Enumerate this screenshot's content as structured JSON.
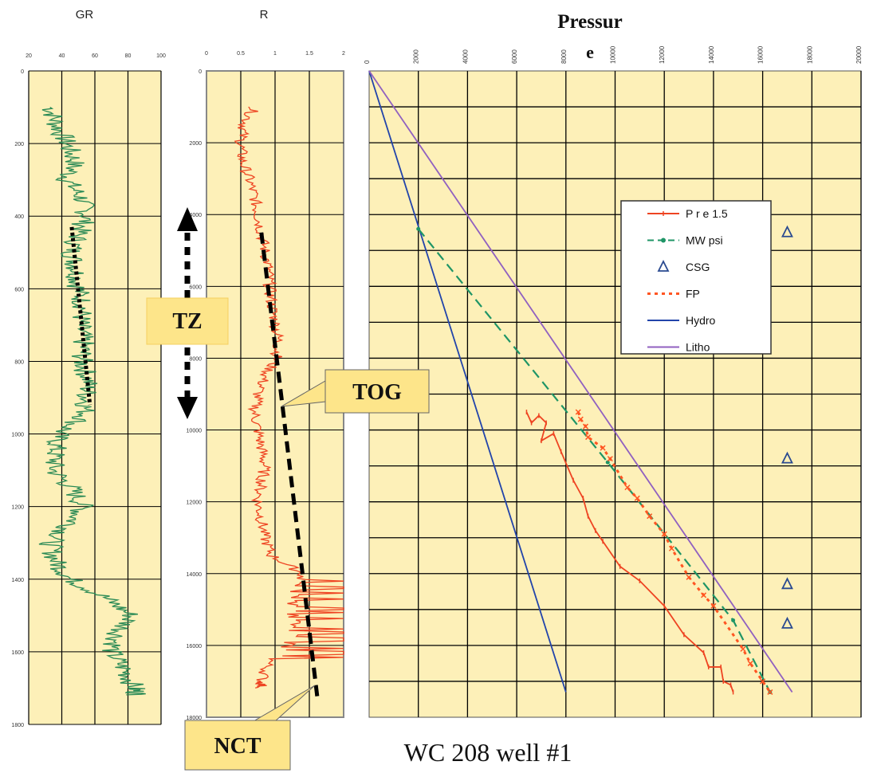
{
  "colors": {
    "panel_bg": "#fdf0b8",
    "grid": "#000000",
    "gr_curve": "#2a8a55",
    "r_curve": "#ee4422",
    "pre": "#ee4422",
    "mw": "#1f9566",
    "csg": "#2a4a90",
    "fp": "#ff5522",
    "hydro": "#2244aa",
    "litho": "#9060c0",
    "annotation_bg": "#fde58a",
    "trend": "#000000"
  },
  "caption": "WC 208 well #1",
  "annotations": {
    "tz": "TZ",
    "tog": "TOG",
    "nct": "NCT"
  },
  "chart_data": [
    {
      "type": "line",
      "title": "GR",
      "x_ticks": [
        "20",
        "40",
        "60",
        "80",
        "100"
      ],
      "y_ticks": [
        "0",
        "200",
        "400",
        "600",
        "800",
        "1000",
        "1200",
        "1400",
        "1600",
        "1800"
      ],
      "xlim": [
        20,
        100
      ],
      "ylim": [
        0,
        1800
      ],
      "y_inverted": true,
      "series": [
        {
          "depth": [
            100,
            150,
            200,
            250,
            300,
            350,
            400,
            450,
            500,
            550,
            600,
            650,
            700,
            750,
            800,
            850,
            900,
            950,
            1000,
            1050,
            1100,
            1150,
            1200,
            1250,
            1300,
            1350,
            1400,
            1450,
            1500,
            1550,
            1600,
            1650,
            1700,
            1720
          ],
          "values": [
            33,
            37,
            43,
            48,
            43,
            52,
            55,
            50,
            46,
            49,
            50,
            53,
            51,
            53,
            52,
            56,
            55,
            54,
            38,
            36,
            35,
            46,
            53,
            45,
            33,
            36,
            45,
            66,
            82,
            74,
            70,
            78,
            84,
            86
          ]
        }
      ],
      "trend": {
        "depth": [
          430,
          920
        ],
        "values": [
          46,
          57
        ]
      }
    },
    {
      "type": "line",
      "title": "R",
      "x_ticks": [
        "0",
        "0.5",
        "1",
        "1.5",
        "2"
      ],
      "y_ticks": [
        "0",
        "2000",
        "4000",
        "6000",
        "8000",
        "10000",
        "12000",
        "14000",
        "16000",
        "18000"
      ],
      "xlim": [
        0,
        2
      ],
      "ylim": [
        0,
        18000
      ],
      "y_inverted": true,
      "series": [
        {
          "depth": [
            1000,
            1500,
            2000,
            2500,
            3000,
            3500,
            4000,
            4500,
            5000,
            5500,
            6000,
            6500,
            7000,
            7500,
            8000,
            8500,
            9000,
            9500,
            10000,
            10500,
            11000,
            11500,
            12000,
            12500,
            13000,
            13500,
            14000,
            14500,
            15000,
            15500,
            16000,
            16500,
            17000,
            17200
          ],
          "values": [
            0.7,
            0.55,
            0.5,
            0.52,
            0.62,
            0.7,
            0.75,
            0.8,
            0.85,
            0.9,
            0.92,
            0.95,
            1.0,
            1.05,
            1.02,
            0.85,
            0.75,
            0.7,
            0.75,
            0.8,
            0.85,
            0.8,
            0.75,
            0.8,
            0.85,
            0.95,
            1.4,
            1.3,
            1.25,
            1.3,
            1.2,
            0.9,
            0.8,
            0.8
          ]
        }
      ],
      "trend": {
        "depth": [
          4500,
          9200,
          17500
        ],
        "values": [
          0.8,
          1.1,
          1.62
        ]
      }
    },
    {
      "type": "line",
      "title": "Pressure",
      "x_ticks": [
        "0",
        "2000",
        "4000",
        "6000",
        "8000",
        "10000",
        "12000",
        "14000",
        "16000",
        "18000",
        "20000"
      ],
      "xlim": [
        0,
        20000
      ],
      "ylim": [
        0,
        18000
      ],
      "y_inverted": true,
      "legend": "right-upper",
      "series": [
        {
          "name": "P r e 1.5",
          "x": [
            6400,
            6600,
            6900,
            7200,
            7000,
            7500,
            7800,
            8300,
            8700,
            8900,
            9200,
            9500,
            10200,
            11000,
            12000,
            12800,
            13600,
            13800,
            14300,
            14400,
            14700,
            14800
          ],
          "y": [
            9500,
            9800,
            9600,
            9800,
            10300,
            10100,
            10600,
            11400,
            11900,
            12400,
            12800,
            13100,
            13800,
            14200,
            14900,
            15700,
            16200,
            16600,
            16600,
            17000,
            17100,
            17300
          ]
        },
        {
          "name": "MW psi",
          "x": [
            2000,
            9700,
            14800,
            16300
          ],
          "y": [
            4400,
            10900,
            15300,
            17300
          ]
        },
        {
          "name": "CSG",
          "x": [
            17000,
            17000,
            17000,
            17000
          ],
          "y": [
            4500,
            10800,
            14300,
            15400
          ]
        },
        {
          "name": "FP",
          "x": [
            8500,
            8600,
            8800,
            8900,
            9500,
            9800,
            10500,
            10900,
            11400,
            12000,
            12300,
            13000,
            13600,
            14000,
            15200,
            15500,
            16000,
            16300
          ],
          "y": [
            9500,
            9700,
            9900,
            10200,
            10500,
            10800,
            11600,
            11900,
            12400,
            12900,
            13300,
            14100,
            14600,
            14900,
            16100,
            16500,
            17000,
            17300
          ]
        },
        {
          "name": "Hydro",
          "x": [
            0,
            8000
          ],
          "y": [
            0,
            17300
          ]
        },
        {
          "name": "Litho",
          "x": [
            0,
            17200
          ],
          "y": [
            0,
            17300
          ]
        }
      ]
    }
  ]
}
